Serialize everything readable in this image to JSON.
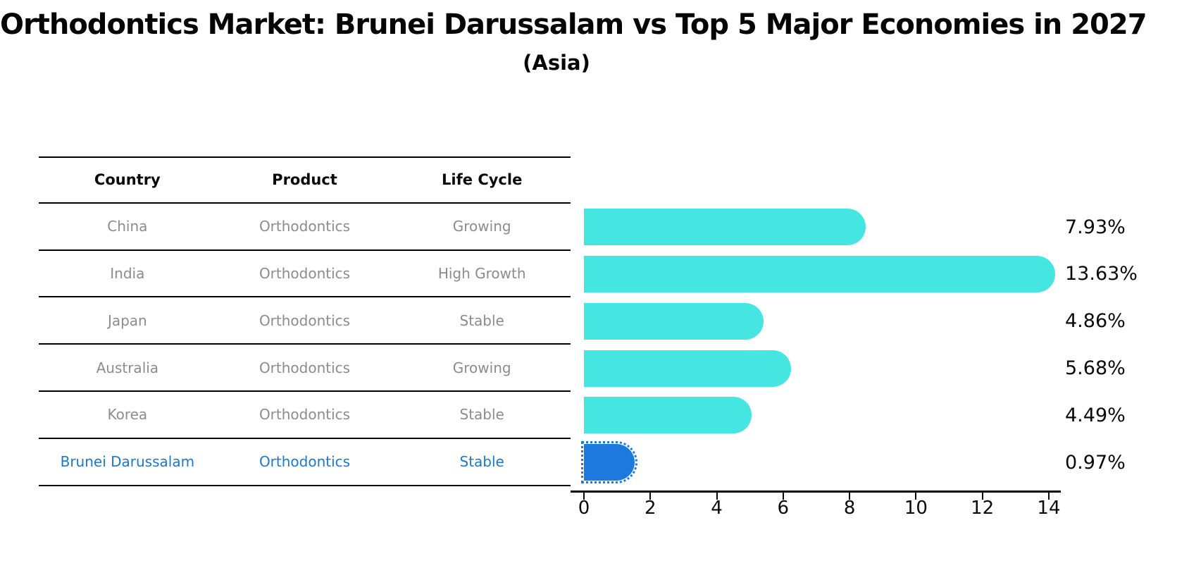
{
  "title": "Orthodontics Market: Brunei Darussalam vs Top 5 Major Economies in 2027",
  "subtitle": "(Asia)",
  "colors": {
    "bar_default": "#45E6E1",
    "bar_highlight": "#1E79DE",
    "highlight_row_text": "#1F78C8",
    "default_row_text": "#8C8C8C",
    "axis": "#000000"
  },
  "table": {
    "headers": [
      "Country",
      "Product",
      "Life Cycle"
    ],
    "rows": [
      {
        "country": "China",
        "product": "Orthodontics",
        "life_cycle": "Growing",
        "highlight": false
      },
      {
        "country": "India",
        "product": "Orthodontics",
        "life_cycle": "High Growth",
        "highlight": false
      },
      {
        "country": "Japan",
        "product": "Orthodontics",
        "life_cycle": "Stable",
        "highlight": false
      },
      {
        "country": "Australia",
        "product": "Orthodontics",
        "life_cycle": "Growing",
        "highlight": false
      },
      {
        "country": "Korea",
        "product": "Orthodontics",
        "life_cycle": "Stable",
        "highlight": false
      },
      {
        "country": "Brunei Darussalam",
        "product": "Orthodontics",
        "life_cycle": "Stable",
        "highlight": true
      }
    ]
  },
  "chart_data": {
    "type": "bar",
    "orientation": "horizontal",
    "title": "Orthodontics Market: Brunei Darussalam vs Top 5 Major Economies in 2027",
    "subtitle": "(Asia)",
    "categories": [
      "China",
      "India",
      "Japan",
      "Australia",
      "Korea",
      "Brunei Darussalam"
    ],
    "values": [
      7.93,
      13.63,
      4.86,
      5.68,
      4.49,
      0.97
    ],
    "value_labels": [
      "7.93%",
      "13.63%",
      "4.86%",
      "5.68%",
      "4.49%",
      "0.97%"
    ],
    "highlight_index": 5,
    "xlabel": "",
    "ylabel": "",
    "xlim": [
      0,
      14
    ],
    "x_ticks": [
      0,
      2,
      4,
      6,
      8,
      10,
      12,
      14
    ],
    "grid": false,
    "legend": false
  }
}
